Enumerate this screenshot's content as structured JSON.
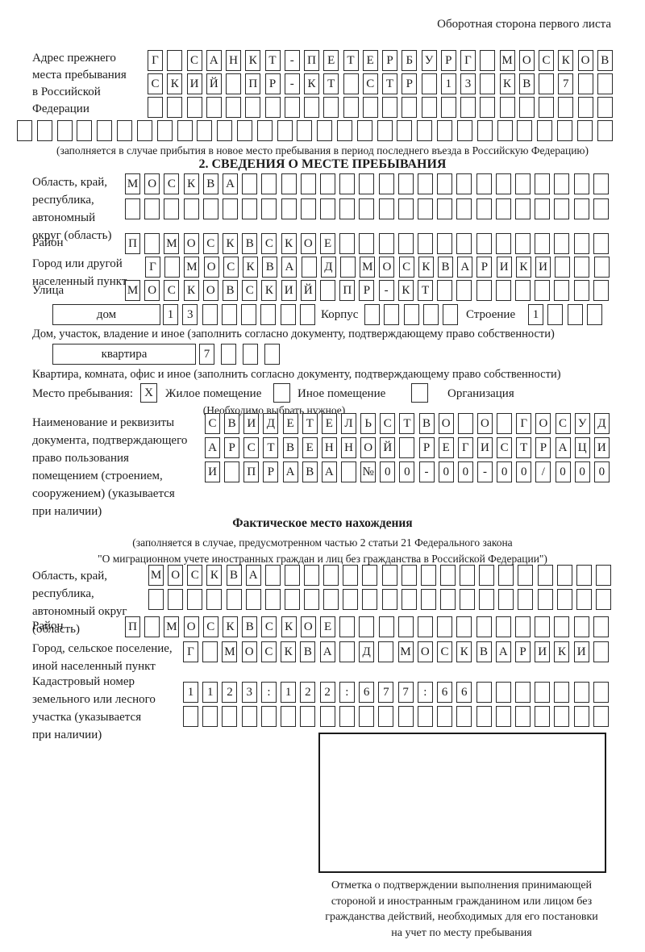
{
  "page": {
    "header_note": "Оборотная сторона первого листа"
  },
  "prev_address": {
    "label": "Адрес прежнего\nместа пребывания\nв Российской\nФедерации",
    "rows": [
      [
        "Г",
        "",
        "С",
        "А",
        "Н",
        "К",
        "Т",
        "-",
        "П",
        "Е",
        "Т",
        "Е",
        "Р",
        "Б",
        "У",
        "Р",
        "Г",
        "",
        "М",
        "О",
        "С",
        "К",
        "О",
        "В"
      ],
      [
        "С",
        "К",
        "И",
        "Й",
        "",
        "П",
        "Р",
        "-",
        "К",
        "Т",
        "",
        "С",
        "Т",
        "Р",
        "",
        "1",
        "3",
        "",
        "К",
        "В",
        "",
        "7",
        "",
        ""
      ],
      [
        "",
        "",
        "",
        "",
        "",
        "",
        "",
        "",
        "",
        "",
        "",
        "",
        "",
        "",
        "",
        "",
        "",
        "",
        "",
        "",
        "",
        "",
        "",
        ""
      ],
      [
        "",
        "",
        "",
        "",
        "",
        "",
        "",
        "",
        "",
        "",
        "",
        "",
        "",
        "",
        "",
        "",
        "",
        "",
        "",
        "",
        "",
        "",
        "",
        "",
        "",
        "",
        "",
        "",
        "",
        ""
      ]
    ],
    "note": "(заполняется в случае прибытия в новое место пребывания в период последнего въезда в Российскую Федерацию)"
  },
  "section2": {
    "title": "2. СВЕДЕНИЯ О МЕСТЕ ПРЕБЫВАНИЯ",
    "region": {
      "label": "Область, край,\nреспублика,\nавтономный\nокруг (область)",
      "rows": [
        [
          "М",
          "О",
          "С",
          "К",
          "В",
          "А",
          "",
          "",
          "",
          "",
          "",
          "",
          "",
          "",
          "",
          "",
          "",
          "",
          "",
          "",
          "",
          "",
          "",
          "",
          ""
        ],
        [
          "",
          "",
          "",
          "",
          "",
          "",
          "",
          "",
          "",
          "",
          "",
          "",
          "",
          "",
          "",
          "",
          "",
          "",
          "",
          "",
          "",
          "",
          "",
          "",
          ""
        ]
      ]
    },
    "district": {
      "label": "Район",
      "row": [
        "П",
        "",
        "М",
        "О",
        "С",
        "К",
        "В",
        "С",
        "К",
        "О",
        "Е",
        "",
        "",
        "",
        "",
        "",
        "",
        "",
        "",
        "",
        "",
        "",
        "",
        "",
        ""
      ]
    },
    "city": {
      "label": "Город или другой\nнаселенный пункт",
      "row": [
        "Г",
        "",
        "М",
        "О",
        "С",
        "К",
        "В",
        "А",
        "",
        "Д",
        "",
        "М",
        "О",
        "С",
        "К",
        "В",
        "А",
        "Р",
        "И",
        "К",
        "И",
        "",
        "",
        ""
      ]
    },
    "street": {
      "label": "Улица",
      "row": [
        "М",
        "О",
        "С",
        "К",
        "О",
        "В",
        "С",
        "К",
        "И",
        "Й",
        "",
        "П",
        "Р",
        "-",
        "К",
        "Т",
        "",
        "",
        "",
        "",
        "",
        "",
        "",
        "",
        ""
      ]
    },
    "house": {
      "box_label": "дом",
      "cells": [
        "1",
        "3",
        "",
        "",
        "",
        "",
        "",
        ""
      ],
      "korpus_label": "Корпус",
      "korpus_cells": [
        "",
        "",
        "",
        "",
        ""
      ],
      "stroenie_label": "Строение",
      "stroenie_cells": [
        "1",
        "",
        "",
        ""
      ]
    },
    "house_note": "Дом, участок, владение и иное (заполнить согласно документу, подтверждающему право собственности)",
    "apartment": {
      "box_label": "квартира",
      "cells": [
        "7",
        "",
        "",
        ""
      ]
    },
    "apartment_note": "Квартира, комната, офис и иное (заполнить согласно документу, подтверждающему право собственности)",
    "stay_type": {
      "label": "Место пребывания:",
      "options": [
        {
          "label": "Жилое помещение",
          "mark": "X"
        },
        {
          "label": "Иное помещение",
          "mark": ""
        },
        {
          "label": "Организация",
          "mark": ""
        }
      ],
      "note": "(Необходимо выбрать нужное)"
    },
    "document": {
      "label": "Наименование и реквизиты\nдокумента, подтверждающего\nправо пользования\nпомещением (строением,\nсооружением) (указывается\nпри наличии)",
      "rows": [
        [
          "С",
          "В",
          "И",
          "Д",
          "Е",
          "Т",
          "Е",
          "Л",
          "Ь",
          "С",
          "Т",
          "В",
          "О",
          "",
          "О",
          "",
          "Г",
          "О",
          "С",
          "У",
          "Д"
        ],
        [
          "А",
          "Р",
          "С",
          "Т",
          "В",
          "Е",
          "Н",
          "Н",
          "О",
          "Й",
          "",
          "Р",
          "Е",
          "Г",
          "И",
          "С",
          "Т",
          "Р",
          "А",
          "Ц",
          "И"
        ],
        [
          "И",
          "",
          "П",
          "Р",
          "А",
          "В",
          "А",
          "",
          "№",
          "0",
          "0",
          "-",
          "0",
          "0",
          "-",
          "0",
          "0",
          "/",
          "0",
          "0",
          "0"
        ]
      ]
    }
  },
  "actual_location": {
    "title": "Фактическое место нахождения",
    "subtitle": "(заполняется в случае, предусмотренном частью 2 статьи 21 Федерального закона\n\"О миграционном учете иностранных граждан и лиц без гражданства в Российской Федерации\")",
    "region": {
      "label": "Область, край,\nреспублика,\nавтономный округ\n(область)",
      "rows": [
        [
          "М",
          "О",
          "С",
          "К",
          "В",
          "А",
          "",
          "",
          "",
          "",
          "",
          "",
          "",
          "",
          "",
          "",
          "",
          "",
          "",
          "",
          "",
          "",
          "",
          ""
        ],
        [
          "",
          "",
          "",
          "",
          "",
          "",
          "",
          "",
          "",
          "",
          "",
          "",
          "",
          "",
          "",
          "",
          "",
          "",
          "",
          "",
          "",
          "",
          "",
          ""
        ]
      ]
    },
    "district": {
      "label": "Район",
      "row": [
        "П",
        "",
        "М",
        "О",
        "С",
        "К",
        "В",
        "С",
        "К",
        "О",
        "Е",
        "",
        "",
        "",
        "",
        "",
        "",
        "",
        "",
        "",
        "",
        "",
        "",
        "",
        ""
      ]
    },
    "city": {
      "label": "Город, сельское поселение,\nиной населенный пункт",
      "row": [
        "Г",
        "",
        "М",
        "О",
        "С",
        "К",
        "В",
        "А",
        "",
        "Д",
        "",
        "М",
        "О",
        "С",
        "К",
        "В",
        "А",
        "Р",
        "И",
        "К",
        "И",
        ""
      ]
    },
    "cadastre": {
      "label": "Кадастровый номер\nземельного или лесного\nучастка (указывается\nпри наличии)",
      "rows": [
        [
          "1",
          "1",
          "2",
          "3",
          ":",
          "1",
          "2",
          "2",
          ":",
          "6",
          "7",
          "7",
          ":",
          "6",
          "6",
          "",
          "",
          "",
          "",
          "",
          "",
          ""
        ],
        [
          "",
          "",
          "",
          "",
          "",
          "",
          "",
          "",
          "",
          "",
          "",
          "",
          "",
          "",
          "",
          "",
          "",
          "",
          "",
          "",
          "",
          ""
        ]
      ]
    },
    "stamp_caption": "Отметка о подтверждении выполнения принимающей\nстороной и иностранным гражданином или лицом без\nгражданства действий, необходимых для его постановки\nна учет по месту пребывания"
  }
}
